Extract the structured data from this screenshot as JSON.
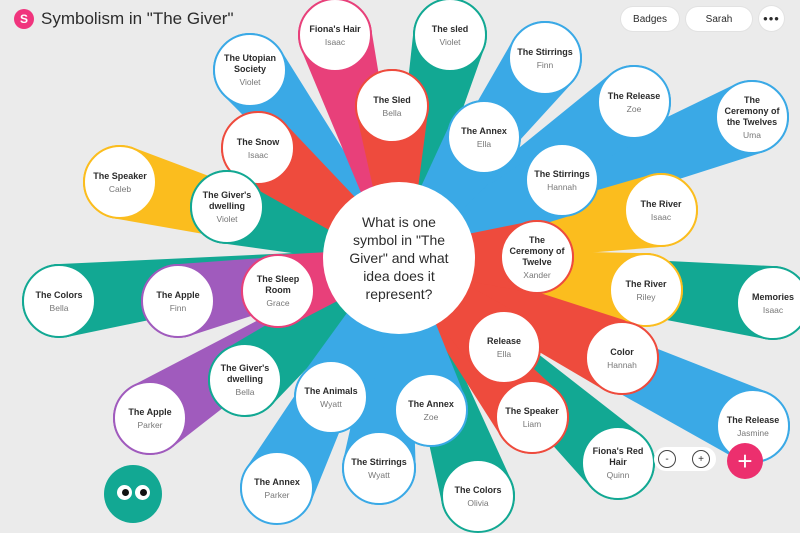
{
  "app": {
    "logo_letter": "S",
    "title": "Symbolism in \"The Giver\""
  },
  "header": {
    "badges_label": "Badges",
    "user_label": "Sarah",
    "more_label": "•••"
  },
  "center": {
    "question": "What is one symbol in \"The Giver\" and what idea does it represent?"
  },
  "zoom": {
    "minus": "-",
    "plus": "+"
  },
  "add_label": "+",
  "colors": {
    "blue": "#3aa9e6",
    "red": "#ee4b3d",
    "pink": "#e8407a",
    "teal": "#12a893",
    "yellow": "#fbbd1e",
    "purple": "#a05bbd"
  },
  "posts": [
    {
      "title": "Fiona's Hair",
      "author": "Isaac",
      "color": "pink"
    },
    {
      "title": "The sled",
      "author": "Violet",
      "color": "teal"
    },
    {
      "title": "The Utopian Society",
      "author": "Violet",
      "color": "blue"
    },
    {
      "title": "The Sled",
      "author": "Bella",
      "color": "red"
    },
    {
      "title": "The Stirrings",
      "author": "Finn",
      "color": "blue"
    },
    {
      "title": "The Release",
      "author": "Zoe",
      "color": "blue"
    },
    {
      "title": "The Ceremony of the Twelves",
      "author": "Uma",
      "color": "blue"
    },
    {
      "title": "The Annex",
      "author": "Ella",
      "color": "blue"
    },
    {
      "title": "The Snow",
      "author": "Isaac",
      "color": "red"
    },
    {
      "title": "The Speaker",
      "author": "Caleb",
      "color": "yellow"
    },
    {
      "title": "The Stirrings",
      "author": "Hannah",
      "color": "blue"
    },
    {
      "title": "The Giver's dwelling",
      "author": "Violet",
      "color": "teal"
    },
    {
      "title": "The River",
      "author": "Isaac",
      "color": "yellow"
    },
    {
      "title": "The Ceremony of Twelve",
      "author": "Xander",
      "color": "red"
    },
    {
      "title": "The Colors",
      "author": "Bella",
      "color": "teal"
    },
    {
      "title": "The Apple",
      "author": "Finn",
      "color": "purple"
    },
    {
      "title": "The Sleep Room",
      "author": "Grace",
      "color": "pink"
    },
    {
      "title": "The River",
      "author": "Riley",
      "color": "yellow"
    },
    {
      "title": "Memories",
      "author": "Isaac",
      "color": "teal"
    },
    {
      "title": "Release",
      "author": "Ella",
      "color": "red"
    },
    {
      "title": "Color",
      "author": "Hannah",
      "color": "red"
    },
    {
      "title": "The Giver's dwelling",
      "author": "Bella",
      "color": "teal"
    },
    {
      "title": "The Animals",
      "author": "Wyatt",
      "color": "blue"
    },
    {
      "title": "The Annex",
      "author": "Zoe",
      "color": "blue"
    },
    {
      "title": "The Apple",
      "author": "Parker",
      "color": "purple"
    },
    {
      "title": "The Speaker",
      "author": "Liam",
      "color": "red"
    },
    {
      "title": "The Release",
      "author": "Jasmine",
      "color": "blue"
    },
    {
      "title": "The Stirrings",
      "author": "Wyatt",
      "color": "blue"
    },
    {
      "title": "Fiona's Red Hair",
      "author": "Quinn",
      "color": "teal"
    },
    {
      "title": "The Annex",
      "author": "Parker",
      "color": "blue"
    },
    {
      "title": "The Colors",
      "author": "Olivia",
      "color": "teal"
    }
  ]
}
